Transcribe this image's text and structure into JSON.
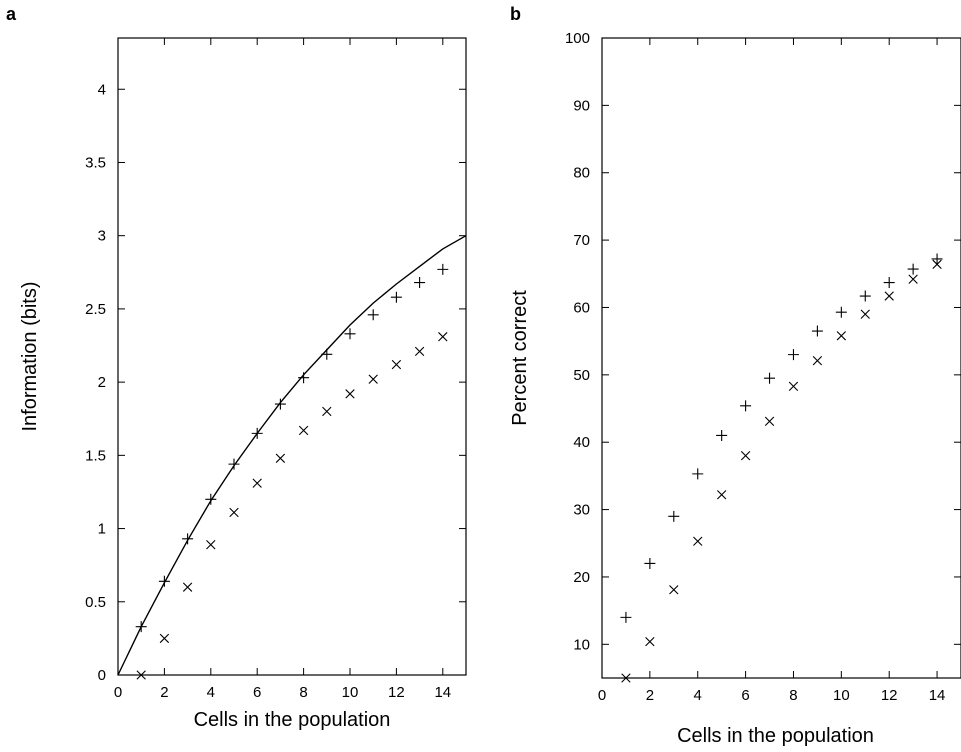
{
  "chart_data": [
    {
      "panel": "a",
      "type": "scatter",
      "xlabel": "Cells in the population",
      "ylabel": "Information (bits)",
      "xlim": [
        0,
        15
      ],
      "ylim": [
        0,
        4.35
      ],
      "xticks": [
        0,
        2,
        4,
        6,
        8,
        10,
        12,
        14
      ],
      "yticks": [
        0,
        0.5,
        1,
        1.5,
        2,
        2.5,
        3,
        3.5,
        4
      ],
      "ytick_labels": [
        "0",
        "0.5",
        "1",
        "1.5",
        "2",
        "2.5",
        "3",
        "3.5",
        "4"
      ],
      "series": [
        {
          "marker": "plus",
          "x": [
            1,
            2,
            3,
            4,
            5,
            6,
            7,
            8,
            9,
            10,
            11,
            12,
            13,
            14
          ],
          "y": [
            0.33,
            0.64,
            0.93,
            1.2,
            1.44,
            1.65,
            1.85,
            2.03,
            2.19,
            2.33,
            2.46,
            2.58,
            2.68,
            2.77
          ]
        },
        {
          "marker": "cross",
          "x": [
            1,
            2,
            3,
            4,
            5,
            6,
            7,
            8,
            9,
            10,
            11,
            12,
            13,
            14
          ],
          "y": [
            0.0,
            0.25,
            0.6,
            0.89,
            1.11,
            1.31,
            1.48,
            1.67,
            1.8,
            1.92,
            2.02,
            2.12,
            2.21,
            2.31
          ]
        },
        {
          "marker": "line",
          "x": [
            0,
            1,
            2,
            3,
            4,
            5,
            6,
            7,
            8,
            9,
            10,
            11,
            12,
            13,
            14,
            15
          ],
          "y": [
            0.0,
            0.33,
            0.63,
            0.92,
            1.19,
            1.43,
            1.65,
            1.86,
            2.05,
            2.22,
            2.39,
            2.54,
            2.67,
            2.79,
            2.91,
            3.0
          ]
        }
      ]
    },
    {
      "panel": "b",
      "type": "scatter",
      "xlabel": "Cells in the population",
      "ylabel": "Percent correct",
      "xlim": [
        0,
        15
      ],
      "ylim": [
        5,
        100
      ],
      "xticks": [
        0,
        2,
        4,
        6,
        8,
        10,
        12,
        14
      ],
      "yticks": [
        10,
        20,
        30,
        40,
        50,
        60,
        70,
        80,
        90,
        100
      ],
      "ytick_labels": [
        "10",
        "20",
        "30",
        "40",
        "50",
        "60",
        "70",
        "80",
        "90",
        "100"
      ],
      "series": [
        {
          "marker": "plus",
          "x": [
            1,
            2,
            3,
            4,
            5,
            6,
            7,
            8,
            9,
            10,
            11,
            12,
            13,
            14
          ],
          "y": [
            14,
            22,
            29,
            35.3,
            41,
            45.4,
            49.5,
            53,
            56.5,
            59.3,
            61.7,
            63.7,
            65.7,
            67.2
          ]
        },
        {
          "marker": "cross",
          "x": [
            1,
            2,
            3,
            4,
            5,
            6,
            7,
            8,
            9,
            10,
            11,
            12,
            13,
            14
          ],
          "y": [
            5,
            10.4,
            18.1,
            25.3,
            32.2,
            38,
            43.1,
            48.3,
            52.1,
            55.8,
            59,
            61.7,
            64.2,
            66.4
          ]
        }
      ]
    }
  ]
}
